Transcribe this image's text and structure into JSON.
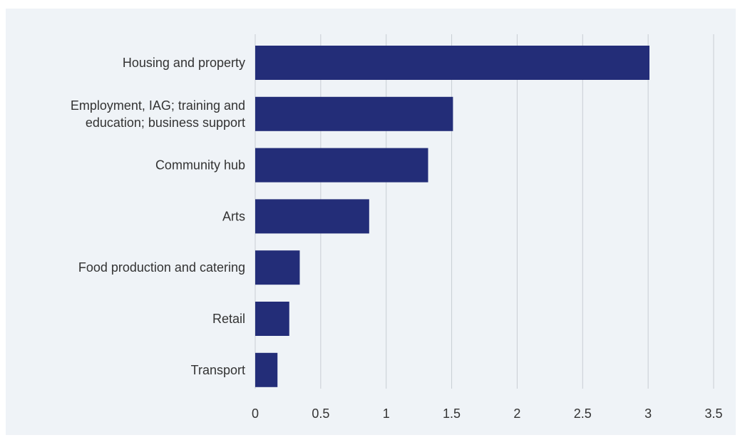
{
  "chart_data": {
    "type": "bar",
    "orientation": "horizontal",
    "categories": [
      [
        "Housing and property"
      ],
      [
        "Employment, IAG; training and",
        "education; business support"
      ],
      [
        "Community hub"
      ],
      [
        "Arts"
      ],
      [
        "Food production and catering"
      ],
      [
        "Retail"
      ],
      [
        "Transport"
      ]
    ],
    "values": [
      3.01,
      1.51,
      1.32,
      0.87,
      0.34,
      0.26,
      0.17
    ],
    "xlim": [
      0,
      3.5
    ],
    "xticks": [
      "0",
      "0.5",
      "1",
      "1.5",
      "2",
      "2.5",
      "3",
      "3.5"
    ],
    "title": "",
    "xlabel": "",
    "ylabel": "",
    "grid": "vertical",
    "colors": {
      "bar": "#232d78",
      "grid": "#c8cdd3",
      "background": "#eff3f7",
      "text": "#333333"
    }
  }
}
